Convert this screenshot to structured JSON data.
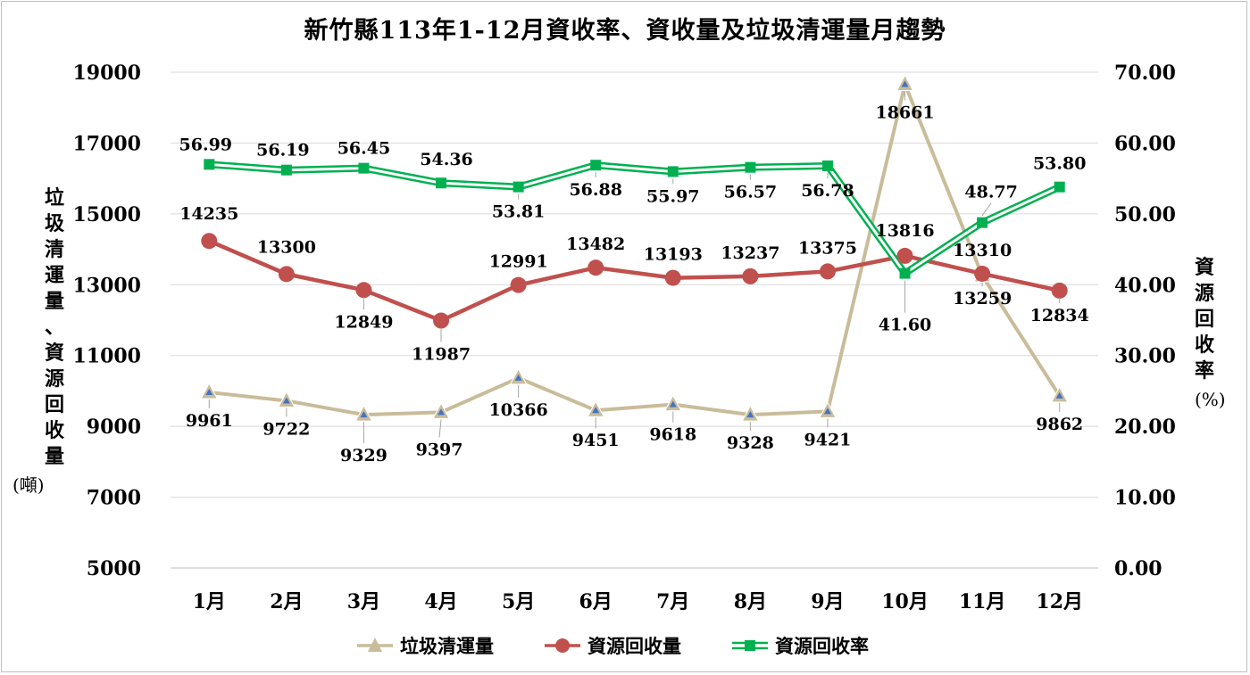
{
  "title": "新竹縣113年1-12月資收率、資收量及垃圾清運量月趨勢",
  "left_axis_label": "垃圾清運量、資源回收量",
  "left_axis_unit": "(噸)",
  "right_axis_label": "資源回收率",
  "right_axis_unit": "(%)",
  "colors": {
    "trash": "#c9bc9a",
    "trash_marker": "#4472c4",
    "recycle_amount": "#c0504d",
    "recycle_rate": "#00b050"
  },
  "chart_data": {
    "type": "line",
    "categories": [
      "1月",
      "2月",
      "3月",
      "4月",
      "5月",
      "6月",
      "7月",
      "8月",
      "9月",
      "10月",
      "11月",
      "12月"
    ],
    "left_axis": {
      "ylim": [
        5000,
        19000
      ],
      "ticks": [
        "5000",
        "7000",
        "9000",
        "11000",
        "13000",
        "15000",
        "17000",
        "19000"
      ]
    },
    "right_axis": {
      "ylim": [
        0,
        70
      ],
      "ticks": [
        "0.00",
        "10.00",
        "20.00",
        "30.00",
        "40.00",
        "50.00",
        "60.00",
        "70.00"
      ]
    },
    "series": [
      {
        "name": "垃圾清運量",
        "axis": "left",
        "values": [
          9961,
          9722,
          9329,
          9397,
          10366,
          9451,
          9618,
          9328,
          9421,
          18661,
          13259,
          9862
        ],
        "labels": [
          "9961",
          "9722",
          "9329",
          "9397",
          "10366",
          "9451",
          "9618",
          "9328",
          "9421",
          "18661",
          "13259",
          "9862"
        ]
      },
      {
        "name": "資源回收量",
        "axis": "left",
        "values": [
          14235,
          13300,
          12849,
          11987,
          12991,
          13482,
          13193,
          13237,
          13375,
          13816,
          13310,
          12834
        ],
        "labels": [
          "14235",
          "13300",
          "12849",
          "11987",
          "12991",
          "13482",
          "13193",
          "13237",
          "13375",
          "13816",
          "13310",
          "12834"
        ]
      },
      {
        "name": "資源回收率",
        "axis": "right",
        "values": [
          56.99,
          56.19,
          56.45,
          54.36,
          53.81,
          56.88,
          55.97,
          56.57,
          56.78,
          41.6,
          48.77,
          53.8
        ],
        "labels": [
          "56.99",
          "56.19",
          "56.45",
          "54.36",
          "53.81",
          "56.88",
          "55.97",
          "56.57",
          "56.78",
          "41.60",
          "48.77",
          "53.80"
        ]
      }
    ],
    "grid": true,
    "legend_position": "bottom"
  }
}
